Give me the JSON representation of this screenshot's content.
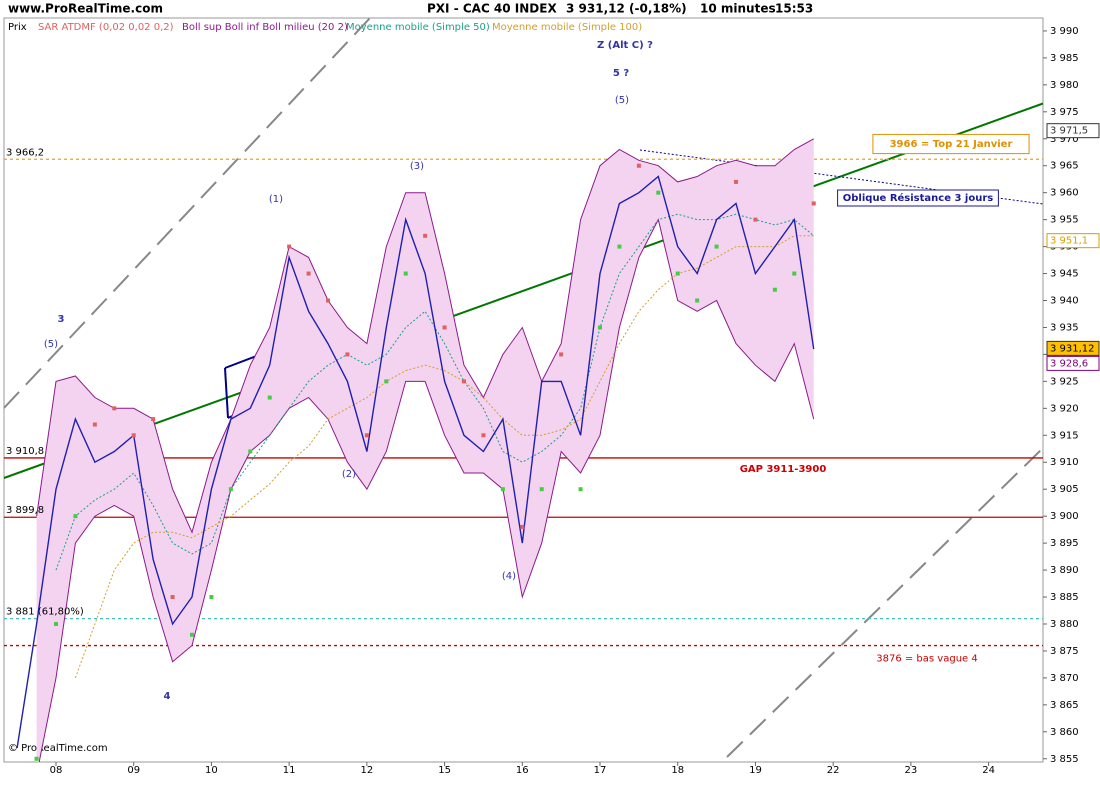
{
  "header": {
    "site": "www.ProRealTime.com",
    "instrument": "PXI - CAC 40 INDEX",
    "quote": "3 931,12 (-0,18%)",
    "interval": "10 minutes",
    "time": "15:53"
  },
  "footer": "© ProRealTime.com",
  "chart_data": {
    "type": "line",
    "legend": "top-left",
    "xlim": [
      -0.669,
      12.7
    ],
    "xticks": [
      {
        "value": 0,
        "label": "08"
      },
      {
        "value": 1,
        "label": "09"
      },
      {
        "value": 2,
        "label": "10"
      },
      {
        "value": 3,
        "label": "11"
      },
      {
        "value": 4,
        "label": "12"
      },
      {
        "value": 5,
        "label": "15"
      },
      {
        "value": 6,
        "label": "16"
      },
      {
        "value": 7,
        "label": "17"
      },
      {
        "value": 8,
        "label": "18"
      },
      {
        "value": 9,
        "label": "19"
      },
      {
        "value": 10,
        "label": "22"
      },
      {
        "value": 11,
        "label": "23"
      },
      {
        "value": 12,
        "label": "24"
      }
    ],
    "ylim": [
      3854.4,
      3992.4
    ],
    "yticks": [
      {
        "value": 3855,
        "label": "3 855"
      },
      {
        "value": 3860,
        "label": "3 860"
      },
      {
        "value": 3865,
        "label": "3 865"
      },
      {
        "value": 3870,
        "label": "3 870"
      },
      {
        "value": 3875,
        "label": "3 875"
      },
      {
        "value": 3880,
        "label": "3 880"
      },
      {
        "value": 3885,
        "label": "3 885"
      },
      {
        "value": 3890,
        "label": "3 890"
      },
      {
        "value": 3895,
        "label": "3 895"
      },
      {
        "value": 3900,
        "label": "3 900"
      },
      {
        "value": 3905,
        "label": "3 905"
      },
      {
        "value": 3910,
        "label": "3 910"
      },
      {
        "value": 3915,
        "label": "3 915"
      },
      {
        "value": 3920,
        "label": "3 920"
      },
      {
        "value": 3925,
        "label": "3 925"
      },
      {
        "value": 3930,
        "label": "3 930"
      },
      {
        "value": 3935,
        "label": "3 935"
      },
      {
        "value": 3940,
        "label": "3 940"
      },
      {
        "value": 3945,
        "label": "3 945"
      },
      {
        "value": 3950,
        "label": "3 950"
      },
      {
        "value": 3955,
        "label": "3 955"
      },
      {
        "value": 3960,
        "label": "3 960"
      },
      {
        "value": 3965,
        "label": "3 965"
      },
      {
        "value": 3970,
        "label": "3 970"
      },
      {
        "value": 3975,
        "label": "3 975"
      },
      {
        "value": 3980,
        "label": "3 980"
      },
      {
        "value": 3985,
        "label": "3 985"
      },
      {
        "value": 3990,
        "label": "3 990"
      }
    ],
    "x": [
      -0.5,
      -0.25,
      0,
      0.25,
      0.5,
      0.75,
      1,
      1.25,
      1.5,
      1.75,
      2,
      2.25,
      2.5,
      2.75,
      3,
      3.25,
      3.5,
      3.75,
      4,
      4.25,
      4.5,
      4.75,
      5,
      5.25,
      5.5,
      5.75,
      6,
      6.25,
      6.5,
      6.75,
      7,
      7.25,
      7.5,
      7.75,
      8,
      8.25,
      8.5,
      8.75,
      9,
      9.25,
      9.5,
      9.75
    ],
    "series": [
      {
        "name": "Boll sup Boll inf Boll milieu (20 2)",
        "color": "#8b1a8b",
        "fill": "#f3d3ef",
        "style": "band",
        "values": [
          null,
          3900,
          3925,
          3926,
          3922,
          3920,
          3920,
          3918,
          3905,
          3897,
          3910,
          3918,
          3928,
          3935,
          3950,
          3948,
          3940,
          3935,
          3932,
          3950,
          3960,
          3960,
          3945,
          3928,
          3922,
          3930,
          3935,
          3925,
          3932,
          3955,
          3965,
          3968,
          3966,
          3965,
          3962,
          3963,
          3965,
          3966,
          3965,
          3965,
          3968,
          3970
        ],
        "lower": [
          null,
          3852,
          3870,
          3895,
          3900,
          3902,
          3900,
          3885,
          3873,
          3876,
          3890,
          3905,
          3912,
          3915,
          3920,
          3922,
          3918,
          3910,
          3905,
          3912,
          3925,
          3925,
          3915,
          3908,
          3908,
          3905,
          3885,
          3895,
          3912,
          3908,
          3915,
          3935,
          3948,
          3955,
          3940,
          3938,
          3940,
          3932,
          3928,
          3925,
          3932,
          3918
        ]
      },
      {
        "name": "Moyenne mobile (Simple 50)",
        "color": "#1aa08a",
        "style": "dashed",
        "values": [
          null,
          null,
          3890,
          3900,
          3903,
          3905,
          3908,
          3902,
          3895,
          3893,
          3895,
          3905,
          3910,
          3915,
          3920,
          3925,
          3928,
          3930,
          3928,
          3930,
          3935,
          3938,
          3932,
          3925,
          3920,
          3912,
          3910,
          3912,
          3915,
          3920,
          3935,
          3945,
          3950,
          3955,
          3956,
          3955,
          3955,
          3956,
          3955,
          3954,
          3955,
          3952
        ]
      },
      {
        "name": "Moyenne mobile (Simple 100)",
        "color": "#d0a030",
        "style": "dashed",
        "values": [
          null,
          null,
          null,
          3870,
          3880,
          3890,
          3895,
          3897,
          3897,
          3896,
          3898,
          3900,
          3903,
          3906,
          3910,
          3913,
          3918,
          3920,
          3922,
          3925,
          3927,
          3928,
          3927,
          3925,
          3922,
          3918,
          3915,
          3915,
          3916,
          3918,
          3925,
          3932,
          3938,
          3942,
          3945,
          3946,
          3948,
          3950,
          3950,
          3950,
          3952,
          3952
        ]
      },
      {
        "name": "Prix",
        "color": "#2020b0",
        "style": "line",
        "values": [
          3857,
          3880,
          3905,
          3918,
          3910,
          3912,
          3915,
          3892,
          3880,
          3885,
          3905,
          3918,
          3920,
          3928,
          3948,
          3938,
          3932,
          3925,
          3912,
          3935,
          3955,
          3945,
          3925,
          3915,
          3912,
          3918,
          3895,
          3925,
          3925,
          3915,
          3945,
          3958,
          3960,
          3963,
          3950,
          3945,
          3955,
          3958,
          3945,
          3950,
          3955,
          3931
        ]
      },
      {
        "name": "SAR ATDMF (0,02 0,02 0,2)",
        "color": "#e06060",
        "color_below": "#44cc44",
        "style": "dots",
        "values": [
          null,
          3855,
          3880,
          3900,
          3917,
          3920,
          3915,
          3918,
          3885,
          3878,
          3885,
          3905,
          3912,
          3922,
          3950,
          3945,
          3940,
          3930,
          3915,
          3925,
          3945,
          3952,
          3935,
          3925,
          3915,
          3905,
          3898,
          3905,
          3930,
          3905,
          3935,
          3950,
          3965,
          3960,
          3945,
          3940,
          3950,
          3962,
          3955,
          3942,
          3945,
          3958
        ]
      }
    ],
    "levels": [
      {
        "value": 3966.2,
        "label": "3 966,2",
        "color": "#f0a020",
        "style": "dotted"
      },
      {
        "value": 3910.8,
        "label": "3 910,8",
        "color": "#cc0000",
        "style": "solid"
      },
      {
        "value": 3899.8,
        "label": "3 899,8",
        "color": "#cc0000",
        "style": "solid"
      },
      {
        "value": 3881,
        "label": "3 881 (61,80%)",
        "color": "#40c0c0",
        "style": "dotted"
      },
      {
        "value": 3876,
        "label": "3876 = bas vague 4",
        "color": "#cc0000",
        "style": "dotted",
        "label_side": "right"
      }
    ],
    "price_tags": [
      {
        "value": 3971.5,
        "label": "3 971,5",
        "color": "#333333",
        "fill": "#ffffff"
      },
      {
        "value": 3951.1,
        "label": "3 951,1",
        "color": "#d4a000",
        "fill": "#ffffff"
      },
      {
        "value": 3931.12,
        "label": "3 931,12",
        "color": "#333333",
        "fill": "#ffc000"
      },
      {
        "value": 3928.6,
        "label": "3 928,6",
        "color": "#800080",
        "fill": "#ffffff"
      }
    ],
    "annotations": [
      {
        "text": "Z (Alt C) ?",
        "color": "#3333aa"
      },
      {
        "text": "5 ?",
        "color": "#3333aa"
      },
      {
        "text": "(5)",
        "color": "#3333aa"
      },
      {
        "text": "(3)",
        "color": "#3333aa"
      },
      {
        "text": "(1)",
        "color": "#3333aa"
      },
      {
        "text": "3",
        "color": "#3333aa"
      },
      {
        "text": "(5)",
        "color": "#3333aa"
      },
      {
        "text": "(2)",
        "color": "#3333aa"
      },
      {
        "text": "(4)",
        "color": "#3333aa"
      },
      {
        "text": "4",
        "color": "#3333aa"
      },
      {
        "text": "GAP 3911-3900",
        "color": "#cc0000"
      },
      {
        "text": "3966 = Top 21 Janvier",
        "color": "#e09000",
        "box": true
      },
      {
        "text": "Oblique Résistance 3 jours",
        "color": "#1a1a99",
        "box": true
      }
    ]
  }
}
